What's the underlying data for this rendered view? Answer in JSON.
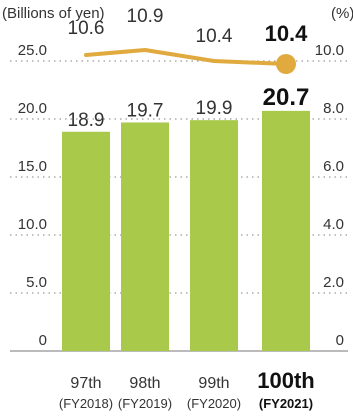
{
  "chart_data": {
    "type": "bar+line",
    "left_unit_label": "(Billions of yen)",
    "right_unit_label": "(%)",
    "categories": [
      {
        "line1": "97th",
        "line2": "(FY2018)"
      },
      {
        "line1": "98th",
        "line2": "(FY2019)"
      },
      {
        "line1": "99th",
        "line2": "(FY2020)"
      },
      {
        "line1": "100th",
        "line2": "(FY2021)"
      }
    ],
    "bar_series": {
      "values": [
        18.9,
        19.7,
        19.9,
        20.7
      ],
      "value_labels": [
        "18.9",
        "19.7",
        "19.9",
        "20.7"
      ],
      "color": "#a9c94a"
    },
    "line_series": {
      "values": [
        10.6,
        10.9,
        10.4,
        10.4
      ],
      "value_labels": [
        "10.6",
        "10.9",
        "10.4",
        "10.4"
      ],
      "color": "#e0aa3e"
    },
    "highlight_index": 3,
    "bar_axis": {
      "range": [
        0,
        25
      ],
      "ticks": [
        0,
        5,
        10,
        15,
        20,
        25
      ],
      "tick_labels": [
        "0",
        "5.0",
        "10.0",
        "15.0",
        "20.0",
        "25.0"
      ]
    },
    "line_axis": {
      "range": [
        0,
        10
      ],
      "tick_labels": [
        "0",
        "2.0",
        "4.0",
        "6.0",
        "8.0",
        "10.0"
      ]
    },
    "grid": "dotted horizontal"
  }
}
